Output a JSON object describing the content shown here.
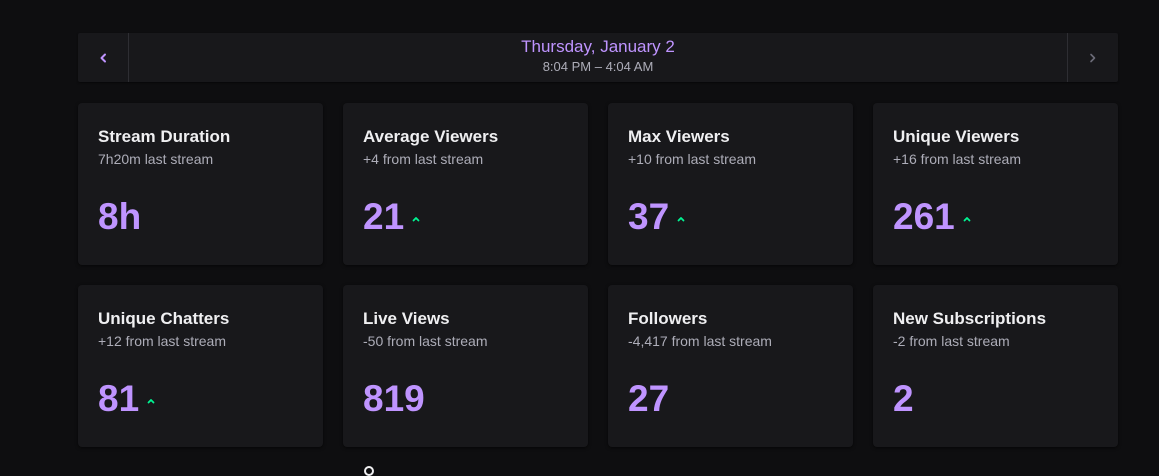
{
  "header": {
    "date": "Thursday, January 2",
    "time_range": "8:04 PM – 4:04 AM",
    "prev_icon": "chevron-left-icon",
    "next_icon": "chevron-right-icon"
  },
  "colors": {
    "accent": "#bf94ff",
    "trend_up": "#00f593",
    "card_bg": "#18181b",
    "page_bg": "#0e0e10"
  },
  "stats": [
    {
      "title": "Stream Duration",
      "subtitle": "7h20m last stream",
      "value": "8h",
      "trend": "none"
    },
    {
      "title": "Average Viewers",
      "subtitle": "+4 from last stream",
      "value": "21",
      "trend": "up"
    },
    {
      "title": "Max Viewers",
      "subtitle": "+10 from last stream",
      "value": "37",
      "trend": "up"
    },
    {
      "title": "Unique Viewers",
      "subtitle": "+16 from last stream",
      "value": "261",
      "trend": "up"
    },
    {
      "title": "Unique Chatters",
      "subtitle": "+12 from last stream",
      "value": "81",
      "trend": "up"
    },
    {
      "title": "Live Views",
      "subtitle": "-50 from last stream",
      "value": "819",
      "trend": "none"
    },
    {
      "title": "Followers",
      "subtitle": "-4,417 from last stream",
      "value": "27",
      "trend": "none"
    },
    {
      "title": "New Subscriptions",
      "subtitle": "-2 from last stream",
      "value": "2",
      "trend": "none"
    }
  ]
}
